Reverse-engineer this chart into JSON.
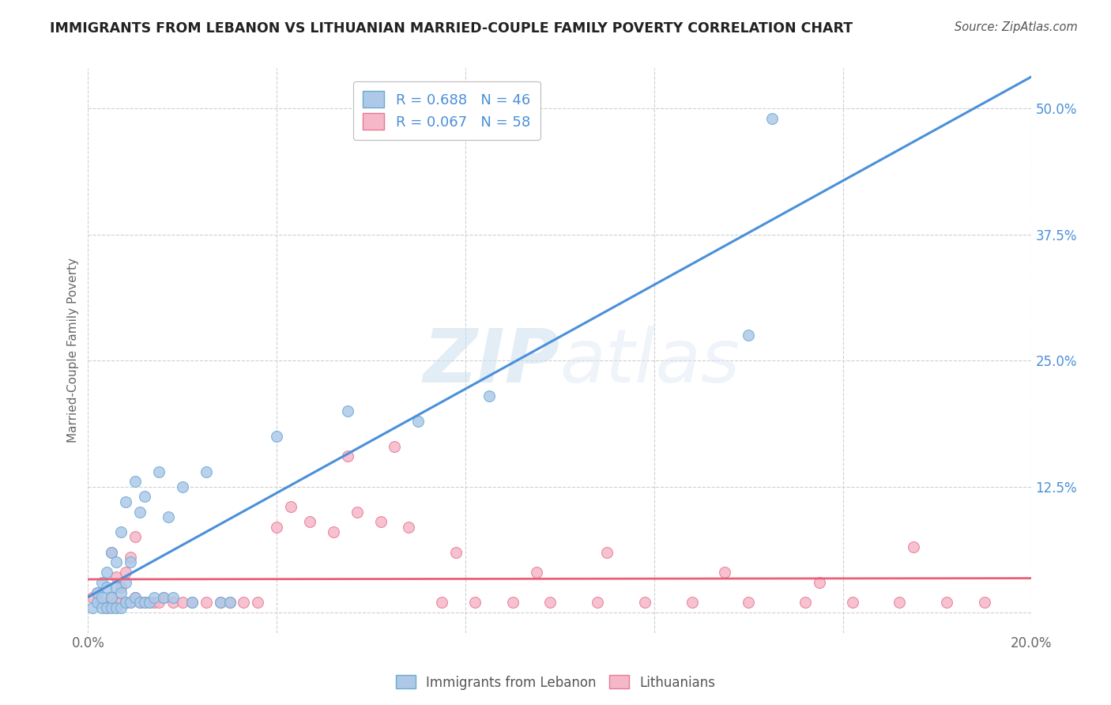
{
  "title": "IMMIGRANTS FROM LEBANON VS LITHUANIAN MARRIED-COUPLE FAMILY POVERTY CORRELATION CHART",
  "source": "Source: ZipAtlas.com",
  "ylabel": "Married-Couple Family Poverty",
  "xlim": [
    0.0,
    0.2
  ],
  "ylim": [
    -0.02,
    0.54
  ],
  "xticks": [
    0.0,
    0.04,
    0.08,
    0.12,
    0.16,
    0.2
  ],
  "xtick_labels": [
    "0.0%",
    "",
    "",
    "",
    "",
    "20.0%"
  ],
  "yticks": [
    0.0,
    0.125,
    0.25,
    0.375,
    0.5
  ],
  "ytick_labels": [
    "",
    "12.5%",
    "25.0%",
    "37.5%",
    "50.0%"
  ],
  "blue_R": 0.688,
  "blue_N": 46,
  "pink_R": 0.067,
  "pink_N": 58,
  "blue_label": "Immigrants from Lebanon",
  "pink_label": "Lithuanians",
  "watermark_zip": "ZIP",
  "watermark_atlas": "atlas",
  "blue_color": "#aec9e8",
  "blue_edge_color": "#6aaad4",
  "pink_color": "#f5b8c8",
  "pink_edge_color": "#e87898",
  "blue_line_color": "#4a90d9",
  "pink_line_color": "#e8607a",
  "background_color": "#ffffff",
  "grid_color": "#d0d0d0",
  "blue_scatter_x": [
    0.001,
    0.002,
    0.002,
    0.003,
    0.003,
    0.003,
    0.004,
    0.004,
    0.004,
    0.005,
    0.005,
    0.005,
    0.006,
    0.006,
    0.006,
    0.007,
    0.007,
    0.007,
    0.008,
    0.008,
    0.008,
    0.009,
    0.009,
    0.01,
    0.01,
    0.011,
    0.011,
    0.012,
    0.012,
    0.013,
    0.014,
    0.015,
    0.016,
    0.017,
    0.018,
    0.02,
    0.022,
    0.025,
    0.028,
    0.03,
    0.04,
    0.055,
    0.07,
    0.085,
    0.14,
    0.145
  ],
  "blue_scatter_y": [
    0.005,
    0.01,
    0.02,
    0.005,
    0.015,
    0.03,
    0.005,
    0.025,
    0.04,
    0.005,
    0.015,
    0.06,
    0.005,
    0.025,
    0.05,
    0.005,
    0.02,
    0.08,
    0.01,
    0.03,
    0.11,
    0.01,
    0.05,
    0.015,
    0.13,
    0.01,
    0.1,
    0.01,
    0.115,
    0.01,
    0.015,
    0.14,
    0.015,
    0.095,
    0.015,
    0.125,
    0.01,
    0.14,
    0.01,
    0.01,
    0.175,
    0.2,
    0.19,
    0.215,
    0.275,
    0.49
  ],
  "pink_scatter_x": [
    0.001,
    0.002,
    0.003,
    0.004,
    0.005,
    0.005,
    0.006,
    0.006,
    0.007,
    0.007,
    0.008,
    0.008,
    0.009,
    0.009,
    0.01,
    0.01,
    0.011,
    0.012,
    0.013,
    0.014,
    0.015,
    0.016,
    0.018,
    0.02,
    0.022,
    0.025,
    0.028,
    0.03,
    0.033,
    0.036,
    0.04,
    0.043,
    0.047,
    0.052,
    0.057,
    0.062,
    0.068,
    0.075,
    0.082,
    0.09,
    0.098,
    0.108,
    0.118,
    0.128,
    0.14,
    0.152,
    0.162,
    0.172,
    0.182,
    0.19,
    0.055,
    0.065,
    0.078,
    0.095,
    0.11,
    0.135,
    0.155,
    0.175
  ],
  "pink_scatter_y": [
    0.015,
    0.02,
    0.01,
    0.005,
    0.015,
    0.06,
    0.01,
    0.035,
    0.01,
    0.025,
    0.01,
    0.04,
    0.01,
    0.055,
    0.015,
    0.075,
    0.01,
    0.01,
    0.01,
    0.01,
    0.01,
    0.015,
    0.01,
    0.01,
    0.01,
    0.01,
    0.01,
    0.01,
    0.01,
    0.01,
    0.085,
    0.105,
    0.09,
    0.08,
    0.1,
    0.09,
    0.085,
    0.01,
    0.01,
    0.01,
    0.01,
    0.01,
    0.01,
    0.01,
    0.01,
    0.01,
    0.01,
    0.01,
    0.01,
    0.01,
    0.155,
    0.165,
    0.06,
    0.04,
    0.06,
    0.04,
    0.03,
    0.065
  ]
}
